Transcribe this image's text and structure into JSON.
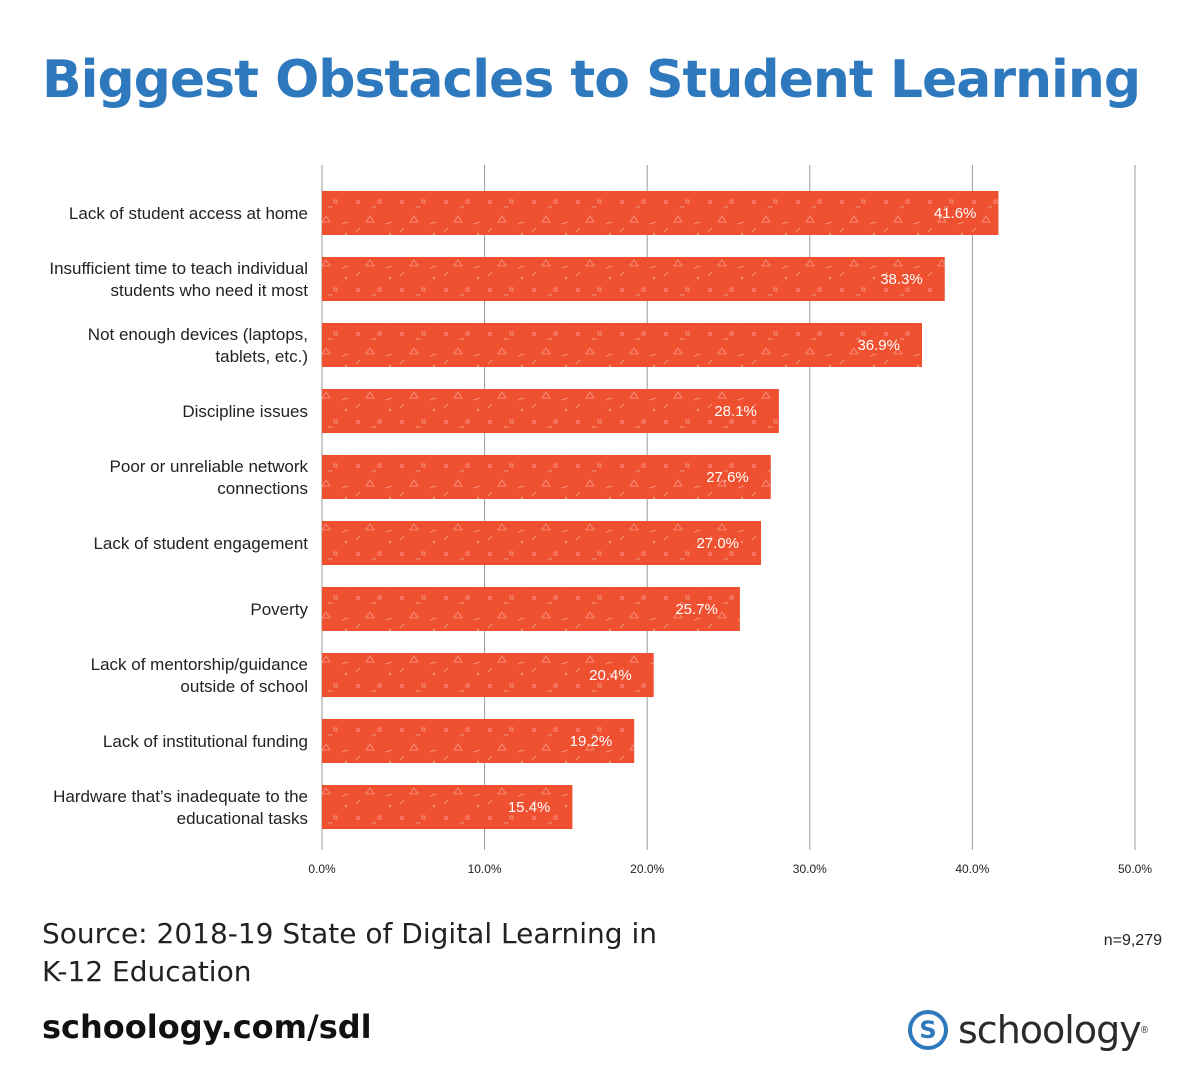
{
  "title": "Biggest Obstacles to Student Learning",
  "chart_data": {
    "type": "bar",
    "orientation": "horizontal",
    "categories": [
      [
        "Lack of student access at home"
      ],
      [
        "Insufficient time to teach individual",
        "students who need it most"
      ],
      [
        "Not enough devices (laptops,",
        "tablets, etc.)"
      ],
      [
        "Discipline issues"
      ],
      [
        "Poor or unreliable network",
        "connections"
      ],
      [
        "Lack of student engagement"
      ],
      [
        "Poverty"
      ],
      [
        "Lack of mentorship/guidance",
        "outside of school"
      ],
      [
        "Lack of institutional funding"
      ],
      [
        "Hardware that’s inadequate to the",
        "educational tasks"
      ]
    ],
    "values": [
      41.6,
      38.3,
      36.9,
      28.1,
      27.6,
      27.0,
      25.7,
      20.4,
      19.2,
      15.4
    ],
    "value_labels": [
      "41.6%",
      "38.3%",
      "36.9%",
      "28.1%",
      "27.6%",
      "27.0%",
      "25.7%",
      "20.4%",
      "19.2%",
      "15.4%"
    ],
    "xlim": [
      0,
      50
    ],
    "xticks": [
      0,
      10,
      20,
      30,
      40,
      50
    ],
    "xtick_labels": [
      "0.0%",
      "10.0%",
      "20.0%",
      "30.0%",
      "40.0%",
      "50.0%"
    ],
    "grid": true,
    "bar_color": "#ef5030",
    "grid_color": "#999999"
  },
  "source_line1": "Source: 2018-19 State of Digital Learning in",
  "source_line2": "K-12 Education",
  "sample_size": "n=9,279",
  "url": "schoology.com/sdl",
  "logo": {
    "mark": "S",
    "name": "schoology",
    "reg": "®",
    "color": "#2e78bd"
  }
}
